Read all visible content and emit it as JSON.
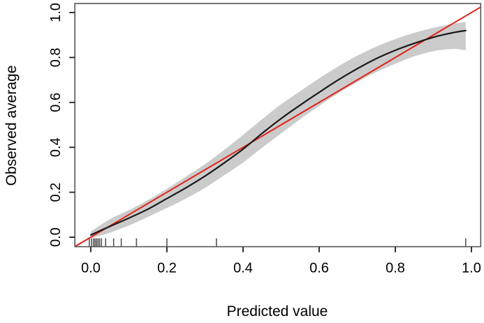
{
  "figure": {
    "kind": "r-calibration-plot",
    "background": "#ffffff"
  },
  "chart_data": {
    "type": "line",
    "title": "",
    "xlabel": "Predicted value",
    "ylabel": "Observed average",
    "xlim": [
      0,
      1
    ],
    "ylim": [
      0,
      1
    ],
    "grid": false,
    "legend": null,
    "x_ticks": [
      0.0,
      0.2,
      0.4,
      0.6,
      0.8,
      1.0
    ],
    "x_tick_labels": [
      "0.0",
      "0.2",
      "0.4",
      "0.6",
      "0.8",
      "1.0"
    ],
    "y_ticks": [
      0.0,
      0.2,
      0.4,
      0.6,
      0.8,
      1.0
    ],
    "y_tick_labels": [
      "0.0",
      "0.2",
      "0.4",
      "0.6",
      "0.8",
      "1.0"
    ],
    "series": [
      {
        "name": "ideal-line",
        "description": "identity reference line y = x",
        "color": "#e02318",
        "x": [
          -0.045,
          1.03
        ],
        "y": [
          -0.045,
          1.03
        ]
      },
      {
        "name": "calibration-curve",
        "description": "observed vs predicted smoothed curve",
        "color": "#1a1a1a",
        "x": [
          0.0,
          0.05,
          0.1,
          0.15,
          0.2,
          0.25,
          0.3,
          0.35,
          0.4,
          0.45,
          0.5,
          0.55,
          0.6,
          0.65,
          0.7,
          0.75,
          0.8,
          0.85,
          0.9,
          0.95,
          0.985
        ],
        "y": [
          0.01,
          0.048,
          0.085,
          0.125,
          0.172,
          0.22,
          0.272,
          0.33,
          0.392,
          0.462,
          0.528,
          0.588,
          0.645,
          0.7,
          0.75,
          0.795,
          0.832,
          0.863,
          0.89,
          0.91,
          0.92
        ]
      },
      {
        "name": "confidence-band",
        "description": "gray confidence band around calibration curve",
        "color": "#cbcbcb",
        "x": [
          0.0,
          0.05,
          0.1,
          0.15,
          0.2,
          0.25,
          0.3,
          0.35,
          0.4,
          0.45,
          0.5,
          0.55,
          0.6,
          0.65,
          0.7,
          0.75,
          0.8,
          0.85,
          0.9,
          0.95,
          0.985
        ],
        "upper": [
          0.025,
          0.08,
          0.12,
          0.165,
          0.215,
          0.27,
          0.325,
          0.388,
          0.455,
          0.525,
          0.592,
          0.65,
          0.707,
          0.76,
          0.808,
          0.848,
          0.882,
          0.91,
          0.932,
          0.95,
          0.957
        ],
        "lower": [
          -0.005,
          0.02,
          0.052,
          0.09,
          0.13,
          0.172,
          0.22,
          0.275,
          0.332,
          0.398,
          0.462,
          0.525,
          0.585,
          0.64,
          0.69,
          0.735,
          0.772,
          0.805,
          0.828,
          0.838,
          0.832
        ]
      }
    ],
    "rug_x": [
      -0.004,
      0.002,
      0.007,
      0.011,
      0.015,
      0.019,
      0.023,
      0.028,
      0.039,
      0.06,
      0.08,
      0.12,
      0.2,
      0.33,
      0.985
    ],
    "colors": {
      "ideal_line": "#e02318",
      "curve": "#1a1a1a",
      "band": "#cbcbcb",
      "box": "#555555",
      "ticks": "#333333",
      "rug": "#555555",
      "text": "#000000"
    }
  }
}
